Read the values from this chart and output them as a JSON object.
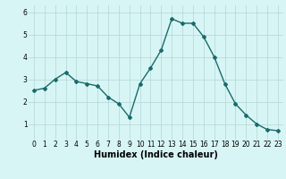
{
  "x": [
    0,
    1,
    2,
    3,
    4,
    5,
    6,
    7,
    8,
    9,
    10,
    11,
    12,
    13,
    14,
    15,
    16,
    17,
    18,
    19,
    20,
    21,
    22,
    23
  ],
  "y": [
    2.5,
    2.6,
    3.0,
    3.3,
    2.9,
    2.8,
    2.7,
    2.2,
    1.9,
    1.3,
    2.8,
    3.5,
    4.3,
    5.7,
    5.5,
    5.5,
    4.9,
    4.0,
    2.8,
    1.9,
    1.4,
    1.0,
    0.75,
    0.7
  ],
  "line_color": "#1a6b6b",
  "marker": "D",
  "marker_size": 2.0,
  "line_width": 1.0,
  "bg_color": "#d8f5f5",
  "grid_color": "#b8dada",
  "xlabel": "Humidex (Indice chaleur)",
  "xlabel_fontsize": 7,
  "yticks": [
    1,
    2,
    3,
    4,
    5,
    6
  ],
  "xticks": [
    0,
    1,
    2,
    3,
    4,
    5,
    6,
    7,
    8,
    9,
    10,
    11,
    12,
    13,
    14,
    15,
    16,
    17,
    18,
    19,
    20,
    21,
    22,
    23
  ],
  "xlim": [
    -0.5,
    23.5
  ],
  "ylim": [
    0.3,
    6.3
  ],
  "tick_fontsize": 5.5
}
